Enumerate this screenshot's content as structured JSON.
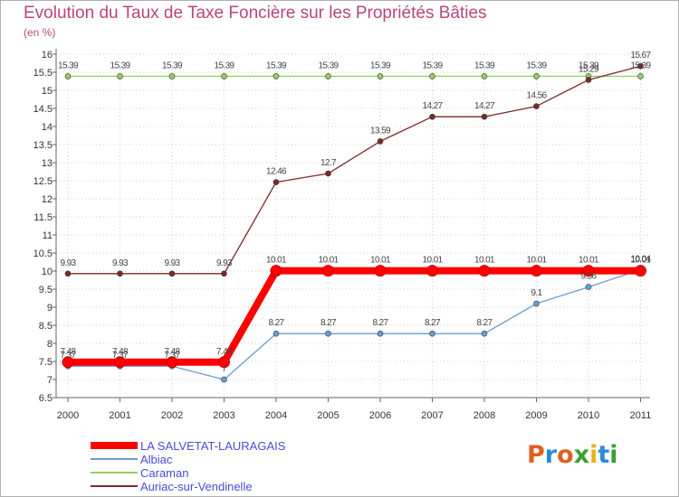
{
  "title": "Evolution du Taux de Taxe Foncière sur les Propriétés Bâties",
  "unit_label": "(en %)",
  "logo": {
    "text": "Proxiti",
    "letters": [
      "P",
      "r",
      "o",
      "x",
      "i",
      "t",
      "i"
    ],
    "colors": [
      "#e06020",
      "#2a8ad8",
      "#e06020",
      "#3aa030",
      "#e8b020",
      "#2a8ad8",
      "#3aa030"
    ]
  },
  "chart_data": {
    "type": "line",
    "title": "Evolution du Taux de Taxe Foncière sur les Propriétés Bâties",
    "ylabel": "(en %)",
    "xlabel": "",
    "x": [
      "2000",
      "2001",
      "2002",
      "2003",
      "2004",
      "2005",
      "2006",
      "2007",
      "2008",
      "2009",
      "2010",
      "2011"
    ],
    "ylim": [
      6.5,
      16
    ],
    "yticks": [
      "6.5",
      "7",
      "7.5",
      "8",
      "8.5",
      "9",
      "9.5",
      "10",
      "10.5",
      "11",
      "11.5",
      "12",
      "12.5",
      "13",
      "13.5",
      "14",
      "14.5",
      "15",
      "15.5",
      "16"
    ],
    "legend_position": "bottom-left",
    "series": [
      {
        "name": "LA SALVETAT-LAURAGAIS",
        "color": "#ff0000",
        "labels": [
          "7.48",
          "7.48",
          "7.48",
          "7.48",
          "10.01",
          "10.01",
          "10.01",
          "10.01",
          "10.01",
          "10.01",
          "10.01",
          "10.01"
        ],
        "values": [
          7.48,
          7.48,
          7.48,
          7.48,
          10.01,
          10.01,
          10.01,
          10.01,
          10.01,
          10.01,
          10.01,
          10.01
        ]
      },
      {
        "name": "Albiac",
        "color": "#6a9ed0",
        "labels": [
          "7.37",
          "7.37",
          "7.37",
          "7",
          "8.27",
          "8.27",
          "8.27",
          "8.27",
          "8.27",
          "9.1",
          "9.56",
          "10.04"
        ],
        "values": [
          7.37,
          7.37,
          7.37,
          7,
          8.27,
          8.27,
          8.27,
          8.27,
          8.27,
          9.1,
          9.56,
          10.04
        ]
      },
      {
        "name": "Caraman",
        "color": "#90d060",
        "labels": [
          "15.39",
          "15.39",
          "15.39",
          "15.39",
          "15.39",
          "15.39",
          "15.39",
          "15.39",
          "15.39",
          "15.39",
          "15.39",
          "15.39"
        ],
        "values": [
          15.39,
          15.39,
          15.39,
          15.39,
          15.39,
          15.39,
          15.39,
          15.39,
          15.39,
          15.39,
          15.39,
          15.39
        ]
      },
      {
        "name": "Auriac-sur-Vendinelle",
        "color": "#7a2a2a",
        "labels": [
          "9.93",
          "9.93",
          "9.93",
          "9.93",
          "12.46",
          "12.7",
          "13.59",
          "14.27",
          "14.27",
          "14.56",
          "15.29",
          "15.67"
        ],
        "values": [
          9.93,
          9.93,
          9.93,
          9.93,
          12.46,
          12.7,
          13.59,
          14.27,
          14.27,
          14.56,
          15.29,
          15.67
        ]
      }
    ]
  }
}
